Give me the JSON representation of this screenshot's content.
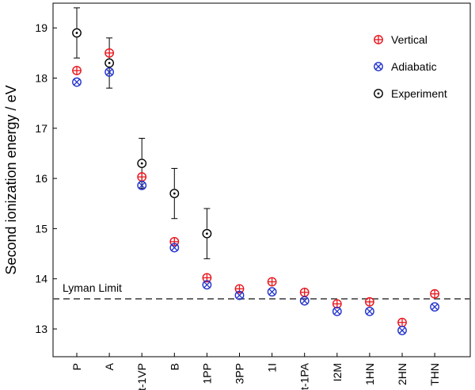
{
  "chart_data": {
    "type": "scatter",
    "title": "",
    "xlabel": "",
    "ylabel": "Second ionization energy / eV",
    "ylim": [
      12.5,
      19.6
    ],
    "yticks": [
      13,
      14,
      15,
      16,
      17,
      18,
      19
    ],
    "yticks_label": [
      "13",
      "14",
      "15",
      "16",
      "17",
      "18",
      "19"
    ],
    "categories": [
      "P",
      "A",
      "t-1VP",
      "B",
      "1PP",
      "3PP",
      "1I",
      "t-1PA",
      "I2M",
      "1HN",
      "2HN",
      "THN"
    ],
    "series": [
      {
        "name": "Vertical",
        "marker": "circle-plus",
        "color": "#e8141b",
        "values": [
          18.15,
          18.5,
          16.03,
          14.74,
          14.02,
          13.8,
          13.94,
          13.73,
          13.5,
          13.54,
          13.13,
          13.7
        ]
      },
      {
        "name": "Adiabatic",
        "marker": "circle-x",
        "color": "#2233cc",
        "values": [
          17.92,
          18.12,
          15.86,
          14.62,
          13.88,
          13.67,
          13.74,
          13.56,
          13.35,
          13.35,
          12.97,
          13.44
        ]
      },
      {
        "name": "Experiment",
        "marker": "circle-dot",
        "color": "#000000",
        "values": [
          18.9,
          18.3,
          16.3,
          15.7,
          14.9,
          null,
          null,
          null,
          null,
          null,
          null,
          null
        ],
        "errors": [
          0.5,
          0.5,
          0.5,
          0.5,
          0.5,
          null,
          null,
          null,
          null,
          null,
          null,
          null
        ]
      }
    ],
    "reference_lines": [
      {
        "y": 13.6,
        "label": "Lyman Limit",
        "style": "dashed",
        "color": "#555555"
      }
    ],
    "legend_position": "top-right"
  }
}
